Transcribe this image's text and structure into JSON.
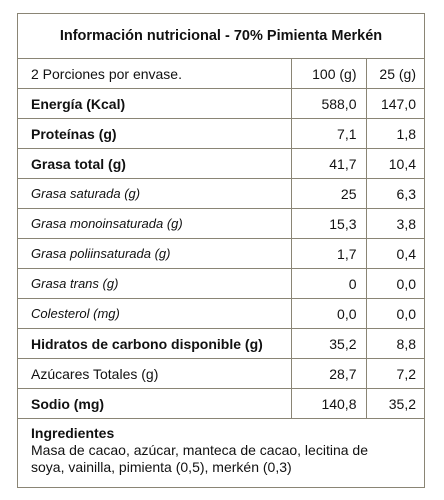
{
  "title": "Información nutricional - 70% Pimienta Merkén",
  "header": {
    "portions": "2 Porciones por envase.",
    "col1": "100 (g)",
    "col2": "25 (g)"
  },
  "rows": [
    {
      "name": "Energía (Kcal)",
      "v1": "588,0",
      "v2": "147,0"
    },
    {
      "name": "Proteínas (g)",
      "v1": "7,1",
      "v2": "1,8"
    },
    {
      "name": "Grasa total (g)",
      "v1": "41,7",
      "v2": "10,4"
    },
    {
      "name": "Grasa saturada (g)",
      "v1": "25",
      "v2": "6,3"
    },
    {
      "name": "Grasa monoinsaturada (g)",
      "v1": "15,3",
      "v2": "3,8"
    },
    {
      "name": "Grasa poliinsaturada (g)",
      "v1": "1,7",
      "v2": "0,4"
    },
    {
      "name": "Grasa trans (g)",
      "v1": "0",
      "v2": "0,0"
    },
    {
      "name": "Colesterol (mg)",
      "v1": "0,0",
      "v2": "0,0"
    },
    {
      "name": "Hidratos de carbono disponible (g)",
      "v1": "35,2",
      "v2": "8,8"
    },
    {
      "name": "Azúcares Totales (g)",
      "v1": "28,7",
      "v2": "7,2"
    },
    {
      "name": "Sodio (mg)",
      "v1": "140,8",
      "v2": "35,2"
    }
  ],
  "ingredients": {
    "title": "Ingredientes",
    "line1": "Masa de cacao, azúcar, manteca de cacao, lecitina de",
    "line2": "soya, vainilla, pimienta (0,5), merkén (0,3)"
  }
}
